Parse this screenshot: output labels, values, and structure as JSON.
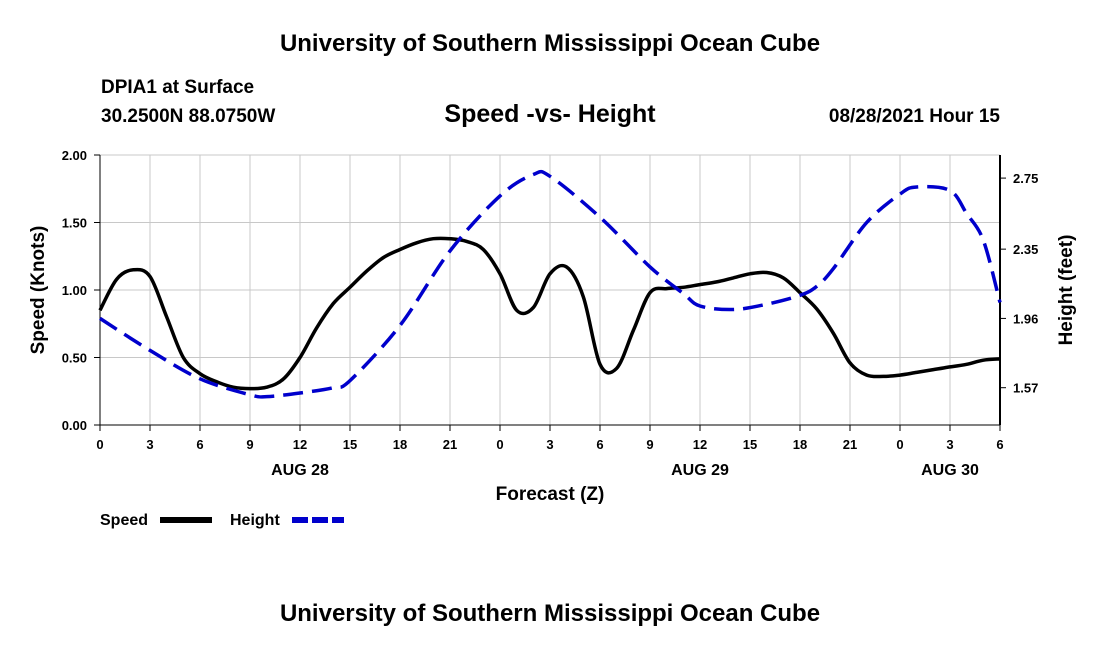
{
  "header_title": "University of Southern Mississippi Ocean Cube",
  "footer_title": "University of Southern Mississippi Ocean Cube",
  "station": {
    "name": "DPIA1 at Surface",
    "coords": "30.2500N  88.0750W"
  },
  "forecast_time": "08/28/2021 Hour 15",
  "chart_data": {
    "type": "line",
    "title": "Speed -vs- Height",
    "xlabel": "Forecast (Z)",
    "ylabel": "Speed (Knots)",
    "y2label": "Height (feet)",
    "xlim": [
      0,
      54
    ],
    "ylim": [
      0,
      2.0
    ],
    "y2lim": [
      1.36,
      2.88
    ],
    "x_ticks": [
      0,
      3,
      6,
      9,
      12,
      15,
      18,
      21,
      24,
      27,
      30,
      33,
      36,
      39,
      42,
      45,
      48,
      51,
      54
    ],
    "x_tick_labels": [
      "0",
      "3",
      "6",
      "9",
      "12",
      "15",
      "18",
      "21",
      "0",
      "3",
      "6",
      "9",
      "12",
      "15",
      "18",
      "21",
      "0",
      "3",
      "6"
    ],
    "date_labels": [
      {
        "x": 12,
        "label": "AUG 28"
      },
      {
        "x": 36,
        "label": "AUG 29"
      },
      {
        "x": 51,
        "label": "AUG 30"
      }
    ],
    "y_ticks": [
      0.0,
      0.5,
      1.0,
      1.5,
      2.0
    ],
    "y_tick_labels": [
      "0.00",
      "0.50",
      "1.00",
      "1.50",
      "2.00"
    ],
    "y2_ticks": [
      1.57,
      1.96,
      2.35,
      2.75
    ],
    "y2_tick_labels": [
      "1.57",
      "1.96",
      "2.35",
      "2.75"
    ],
    "grid": true,
    "legend_position": "bottom-left",
    "series": [
      {
        "name": "Speed",
        "axis": "left",
        "color": "#000000",
        "style": "solid",
        "x": [
          0,
          1,
          2,
          3,
          4,
          5,
          6,
          7,
          8,
          9,
          10,
          11,
          12,
          13,
          14,
          15,
          16,
          17,
          18,
          19,
          20,
          21,
          22,
          23,
          24,
          25,
          26,
          27,
          28,
          29,
          30,
          31,
          32,
          33,
          34,
          35,
          36,
          37,
          38,
          39,
          40,
          41,
          42,
          43,
          44,
          45,
          46,
          47,
          48,
          49,
          50,
          51,
          52,
          53,
          54
        ],
        "values": [
          0.85,
          1.08,
          1.15,
          1.1,
          0.8,
          0.5,
          0.38,
          0.32,
          0.28,
          0.27,
          0.28,
          0.34,
          0.5,
          0.72,
          0.9,
          1.02,
          1.14,
          1.24,
          1.3,
          1.35,
          1.38,
          1.38,
          1.36,
          1.3,
          1.12,
          0.85,
          0.87,
          1.12,
          1.17,
          0.95,
          0.45,
          0.42,
          0.7,
          0.98,
          1.01,
          1.02,
          1.04,
          1.06,
          1.09,
          1.12,
          1.13,
          1.09,
          0.98,
          0.86,
          0.68,
          0.46,
          0.37,
          0.36,
          0.37,
          0.39,
          0.41,
          0.43,
          0.45,
          0.48,
          0.49
        ]
      },
      {
        "name": "Height",
        "axis": "right",
        "color": "#0000cc",
        "style": "dashed",
        "x": [
          0,
          3,
          6,
          9,
          10,
          12,
          14,
          15,
          18,
          21,
          24,
          26,
          27,
          30,
          33,
          35,
          36,
          38,
          40,
          42,
          43,
          44,
          46,
          48,
          49,
          51,
          52,
          53,
          54
        ],
        "values": [
          1.96,
          1.78,
          1.62,
          1.53,
          1.52,
          1.54,
          1.57,
          1.61,
          1.92,
          2.34,
          2.65,
          2.77,
          2.76,
          2.53,
          2.25,
          2.1,
          2.03,
          2.01,
          2.04,
          2.09,
          2.14,
          2.24,
          2.5,
          2.66,
          2.7,
          2.68,
          2.55,
          2.4,
          2.05
        ]
      }
    ]
  }
}
